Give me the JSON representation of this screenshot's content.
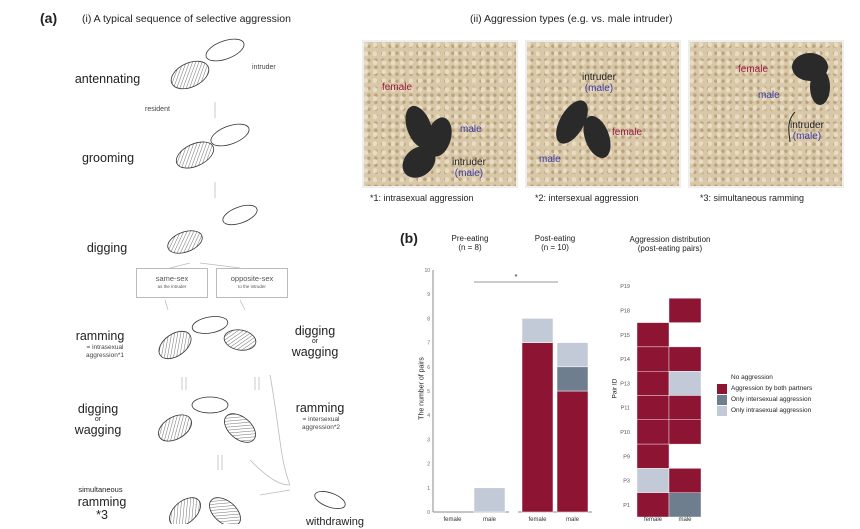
{
  "panel_a": {
    "label": "(a)",
    "title": "(i) A typical sequence of selective aggression",
    "stages": {
      "antennating": "antennating",
      "intruder": "intruder",
      "resident": "resident",
      "grooming": "grooming",
      "digging": "digging",
      "same_sex": "same-sex",
      "same_sex_sub": "as the intruder",
      "opposite_sex": "opposite-sex",
      "opposite_sex_sub": "to the intruder",
      "ramming_left": "ramming",
      "ramming_left_sub": "= intrasexual aggression*1",
      "dw_right_1": "digging",
      "dw_right_or": "or",
      "dw_right_2": "wagging",
      "dw_left_1": "digging",
      "dw_left_or": "or",
      "dw_left_2": "wagging",
      "ramming_right": "ramming",
      "ramming_right_sub": "= intersexual aggression*2",
      "simultaneous": "simultaneous",
      "simultaneous_ramming": "ramming *3",
      "withdrawing": "withdrawing"
    }
  },
  "panel_a_ii": {
    "title": "(ii) Aggression types (e.g. vs. male intruder)",
    "photos": [
      {
        "labels": {
          "female": "female",
          "male": "male",
          "intruder": "intruder",
          "intruder_male": "(male)"
        },
        "caption": "*1: intrasexual aggression"
      },
      {
        "labels": {
          "female": "female",
          "male": "male",
          "intruder": "intruder",
          "intruder_male": "(male)"
        },
        "caption": "*2: intersexual aggression"
      },
      {
        "labels": {
          "female": "female",
          "male": "male",
          "intruder": "intruder",
          "intruder_male": "(male)"
        },
        "caption": "*3: simultaneous ramming"
      }
    ]
  },
  "panel_b": {
    "label": "(b)",
    "pre_title": "Pre-eating",
    "pre_n": "(n = 8)",
    "post_title": "Post-eating",
    "post_n": "(n = 10)",
    "dist_title": "Aggression distribution",
    "dist_sub": "(post-eating pairs)",
    "ylabel": "The number of pairs",
    "pair_label": "Pair ID",
    "sig": "*",
    "legend": [
      "No aggression",
      "Aggression by both partners",
      "Only intersexual aggression",
      "Only intrasexual aggression"
    ]
  },
  "colors": {
    "none": "#ffffff",
    "both": "#8d1433",
    "inter": "#6e7e8e",
    "intra": "#c2cad8"
  },
  "chart_data": [
    {
      "type": "bar",
      "stacked": true,
      "ylabel": "The number of pairs",
      "ylim": [
        0,
        10
      ],
      "yticks": [
        "0",
        "1",
        "2",
        "3",
        "4",
        "5",
        "6",
        "7",
        "8",
        "9",
        "10"
      ],
      "groups": [
        "Pre-eating (n = 8)",
        "Post-eating (n = 10)"
      ],
      "categories": [
        "female",
        "male",
        "female",
        "male"
      ],
      "series": [
        {
          "name": "Aggression by both partners",
          "key": "both",
          "values": [
            0,
            0,
            7,
            5
          ]
        },
        {
          "name": "Only intersexual aggression",
          "key": "inter",
          "values": [
            0,
            0,
            0,
            1
          ]
        },
        {
          "name": "Only intrasexual aggression",
          "key": "intra",
          "values": [
            0,
            1,
            1,
            1
          ]
        }
      ],
      "annotation": "* between Pre-eating and Post-eating"
    },
    {
      "type": "heatmap",
      "title": "Aggression distribution (post-eating pairs)",
      "ylabel": "Pair ID",
      "columns": [
        "female",
        "male"
      ],
      "rows": [
        "P19",
        "P18",
        "P15",
        "P14",
        "P13",
        "P11",
        "P10",
        "P9",
        "P3",
        "P1"
      ],
      "values": [
        [
          "none",
          "none"
        ],
        [
          "none",
          "both"
        ],
        [
          "both",
          "none"
        ],
        [
          "both",
          "both"
        ],
        [
          "both",
          "intra"
        ],
        [
          "both",
          "both"
        ],
        [
          "both",
          "both"
        ],
        [
          "both",
          "none"
        ],
        [
          "intra",
          "both"
        ],
        [
          "both",
          "inter"
        ]
      ]
    }
  ]
}
